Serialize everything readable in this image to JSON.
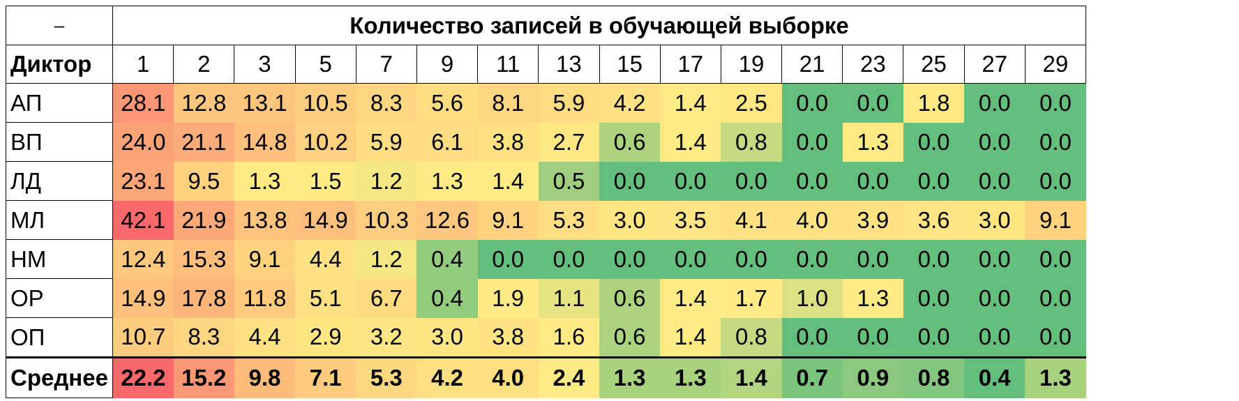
{
  "corner_label": "–",
  "title": "Количество записей в обучающей выборке",
  "speaker_header": "Диктор",
  "chart_data": {
    "type": "heatmap",
    "title": "Количество записей в обучающей выборке",
    "x": [
      "1",
      "2",
      "3",
      "5",
      "7",
      "9",
      "11",
      "13",
      "15",
      "17",
      "19",
      "21",
      "23",
      "25",
      "27",
      "29"
    ],
    "rows": [
      {
        "name": "АП",
        "values": [
          "28.1",
          "12.8",
          "13.1",
          "10.5",
          "8.3",
          "5.6",
          "8.1",
          "5.9",
          "4.2",
          "1.4",
          "2.5",
          "0.0",
          "0.0",
          "1.8",
          "0.0",
          "0.0"
        ]
      },
      {
        "name": "ВП",
        "values": [
          "24.0",
          "21.1",
          "14.8",
          "10.2",
          "5.9",
          "6.1",
          "3.8",
          "2.7",
          "0.6",
          "1.4",
          "0.8",
          "0.0",
          "1.3",
          "0.0",
          "0.0",
          "0.0"
        ]
      },
      {
        "name": "ЛД",
        "values": [
          "23.1",
          "9.5",
          "1.3",
          "1.5",
          "1.2",
          "1.3",
          "1.4",
          "0.5",
          "0.0",
          "0.0",
          "0.0",
          "0.0",
          "0.0",
          "0.0",
          "0.0",
          "0.0"
        ]
      },
      {
        "name": "МЛ",
        "values": [
          "42.1",
          "21.9",
          "13.8",
          "14.9",
          "10.3",
          "12.6",
          "9.1",
          "5.3",
          "3.0",
          "3.5",
          "4.1",
          "4.0",
          "3.9",
          "3.6",
          "3.0",
          "9.1"
        ]
      },
      {
        "name": "НМ",
        "values": [
          "12.4",
          "15.3",
          "9.1",
          "4.4",
          "1.2",
          "0.4",
          "0.0",
          "0.0",
          "0.0",
          "0.0",
          "0.0",
          "0.0",
          "0.0",
          "0.0",
          "0.0",
          "0.0"
        ]
      },
      {
        "name": "ОР",
        "values": [
          "14.9",
          "17.8",
          "11.8",
          "5.1",
          "6.7",
          "0.4",
          "1.9",
          "1.1",
          "0.6",
          "1.4",
          "1.7",
          "1.0",
          "1.3",
          "0.0",
          "0.0",
          "0.0"
        ]
      },
      {
        "name": "ОП",
        "values": [
          "10.7",
          "8.3",
          "4.4",
          "2.9",
          "3.2",
          "3.0",
          "3.8",
          "1.6",
          "0.6",
          "1.4",
          "0.8",
          "0.0",
          "0.0",
          "0.0",
          "0.0",
          "0.0"
        ]
      }
    ],
    "summary_row": {
      "name": "Среднее",
      "values": [
        "22.2",
        "15.2",
        "9.8",
        "7.1",
        "5.3",
        "4.2",
        "4.0",
        "2.4",
        "1.3",
        "1.3",
        "1.4",
        "0.7",
        "0.9",
        "0.8",
        "0.4",
        "1.3"
      ]
    },
    "color_scale": {
      "low": "#63be7b",
      "mid": "#ffeb84",
      "high": "#f8696b",
      "domain": [
        0,
        1.3,
        42.1
      ]
    }
  }
}
